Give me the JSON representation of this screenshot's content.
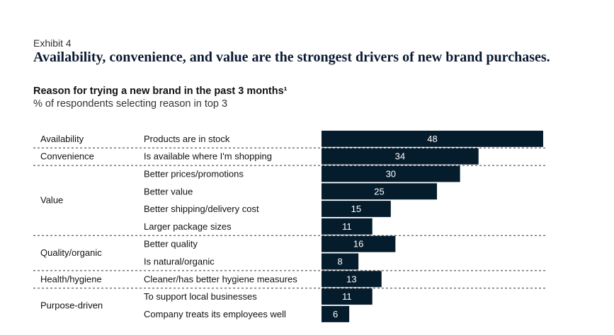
{
  "exhibit": "Exhibit 4",
  "headline": "Availability, convenience, and value are the strongest drivers of new brand purchases.",
  "subtitle": "Reason for trying a new brand in the past 3 months¹",
  "subtitle2": "% of respondents selecting reason in top 3",
  "colors": {
    "bar": "#051c2c",
    "divider": "#333333"
  },
  "chart_data": {
    "type": "bar",
    "orientation": "horizontal",
    "title": "Reason for trying a new brand in the past 3 months¹",
    "subtitle": "% of respondents selecting reason in top 3",
    "categories": [
      "Products are in stock",
      "Is available where I'm shopping",
      "Better prices/promotions",
      "Better value",
      "Better shipping/delivery cost",
      "Larger package sizes",
      "Better quality",
      "Is natural/organic",
      "Cleaner/has better hygiene measures",
      "To support local businesses",
      "Company treats its employees well"
    ],
    "values": [
      48,
      34,
      30,
      25,
      15,
      11,
      16,
      8,
      13,
      11,
      6
    ],
    "groups": [
      {
        "name": "Availability",
        "start": 0,
        "end": 0
      },
      {
        "name": "Convenience",
        "start": 1,
        "end": 1
      },
      {
        "name": "Value",
        "start": 2,
        "end": 5
      },
      {
        "name": "Quality/organic",
        "start": 6,
        "end": 7
      },
      {
        "name": "Health/hygiene",
        "start": 8,
        "end": 8
      },
      {
        "name": "Purpose-driven",
        "start": 9,
        "end": 10
      }
    ],
    "xlim": [
      0,
      48
    ],
    "grid": false,
    "data_labels": true
  }
}
